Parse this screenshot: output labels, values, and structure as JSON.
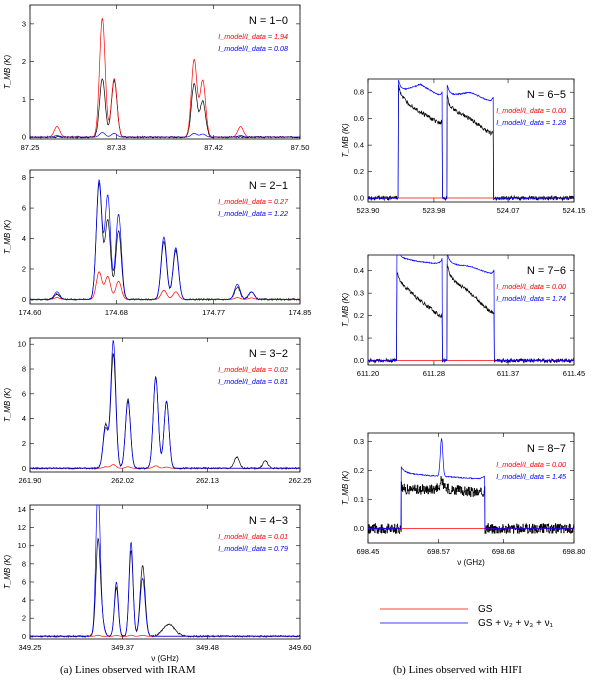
{
  "colors": {
    "data": "#000000",
    "gs": "#ff0000",
    "full": "#0000ff"
  },
  "captions": {
    "a": "(a) Lines observed with IRAM",
    "b": "(b) Lines observed with HIFI"
  },
  "legend": {
    "gs_label": "GS",
    "full_label": "GS + ν₂ + ν₃ + ν₁"
  },
  "chart_data": [
    {
      "type": "line",
      "title": "N = 1−0",
      "ylabel": "T_MB (K)",
      "xlabel": "",
      "xlim": [
        87.25,
        87.5
      ],
      "ylim": [
        -0.05,
        3.5
      ],
      "xticks": [
        "87.25",
        "87.33",
        "87.42",
        "87.50"
      ],
      "yticks": [
        0,
        1,
        2,
        3
      ],
      "ratio_gs": "I_model/I_data = 1.94",
      "ratio_full": "I_model/I_data = 0.08",
      "peaks": [
        {
          "x": 87.275,
          "w": 0.004,
          "data": 0.0,
          "gs": 0.28,
          "full": 0.04
        },
        {
          "x": 87.317,
          "w": 0.004,
          "data": 1.55,
          "gs": 3.15,
          "full": 0.12
        },
        {
          "x": 87.328,
          "w": 0.004,
          "data": 1.5,
          "gs": 1.55,
          "full": 0.1
        },
        {
          "x": 87.402,
          "w": 0.004,
          "data": 1.4,
          "gs": 2.05,
          "full": 0.1
        },
        {
          "x": 87.41,
          "w": 0.004,
          "data": 0.95,
          "gs": 1.5,
          "full": 0.08
        },
        {
          "x": 87.445,
          "w": 0.004,
          "data": 0.0,
          "gs": 0.28,
          "full": 0.04
        }
      ]
    },
    {
      "type": "line",
      "title": "N = 2−1",
      "ylabel": "T_MB (K)",
      "xlabel": "",
      "xlim": [
        174.6,
        174.85
      ],
      "ylim": [
        -0.3,
        8.5
      ],
      "xticks": [
        "174.60",
        "174.68",
        "174.77",
        "174.85"
      ],
      "yticks": [
        0,
        2,
        4,
        6,
        8
      ],
      "ratio_gs": "I_model/I_data = 0.27",
      "ratio_full": "I_model/I_data = 1.22",
      "peaks": [
        {
          "x": 174.625,
          "w": 0.004,
          "data": 0.35,
          "gs": 0.12,
          "full": 0.5
        },
        {
          "x": 174.664,
          "w": 0.004,
          "data": 7.6,
          "gs": 1.8,
          "full": 7.8
        },
        {
          "x": 174.672,
          "w": 0.004,
          "data": 5.2,
          "gs": 1.5,
          "full": 6.8
        },
        {
          "x": 174.682,
          "w": 0.004,
          "data": 4.5,
          "gs": 1.2,
          "full": 5.6
        },
        {
          "x": 174.724,
          "w": 0.004,
          "data": 3.8,
          "gs": 0.6,
          "full": 4.1
        },
        {
          "x": 174.735,
          "w": 0.004,
          "data": 3.2,
          "gs": 0.5,
          "full": 3.4
        },
        {
          "x": 174.792,
          "w": 0.004,
          "data": 0.8,
          "gs": 0.12,
          "full": 1.0
        },
        {
          "x": 174.805,
          "w": 0.004,
          "data": 0.5,
          "gs": 0.1,
          "full": 0.5
        }
      ]
    },
    {
      "type": "line",
      "title": "N = 3−2",
      "ylabel": "T_MB (K)",
      "xlabel": "",
      "xlim": [
        261.9,
        262.25
      ],
      "ylim": [
        -0.3,
        10.5
      ],
      "xticks": [
        "261.90",
        "262.02",
        "262.13",
        "262.25"
      ],
      "yticks": [
        0,
        2,
        4,
        6,
        8,
        10
      ],
      "ratio_gs": "I_model/I_data = 0.02",
      "ratio_full": "I_model/I_data = 0.81",
      "peaks": [
        {
          "x": 261.998,
          "w": 0.005,
          "data": 3.5,
          "gs": 0.12,
          "full": 3.2
        },
        {
          "x": 262.008,
          "w": 0.005,
          "data": 9.2,
          "gs": 0.3,
          "full": 10.3
        },
        {
          "x": 262.027,
          "w": 0.005,
          "data": 5.6,
          "gs": 0.12,
          "full": 5.4
        },
        {
          "x": 262.063,
          "w": 0.005,
          "data": 7.4,
          "gs": 0.2,
          "full": 7.3
        },
        {
          "x": 262.077,
          "w": 0.005,
          "data": 5.4,
          "gs": 0.1,
          "full": 5.4
        },
        {
          "x": 262.168,
          "w": 0.005,
          "data": 0.9,
          "gs": 0.0,
          "full": 0.0
        },
        {
          "x": 262.205,
          "w": 0.005,
          "data": 0.6,
          "gs": 0.0,
          "full": 0.0
        }
      ]
    },
    {
      "type": "line",
      "title": "N = 4−3",
      "ylabel": "T_MB (K)",
      "xlabel": "ν (GHz)",
      "xlim": [
        349.25,
        349.6
      ],
      "ylim": [
        -0.3,
        14.5
      ],
      "xticks": [
        "349.25",
        "349.37",
        "349.48",
        "349.60"
      ],
      "yticks": [
        0,
        2,
        4,
        6,
        8,
        10,
        12,
        14
      ],
      "ratio_gs": "I_model/I_data = 0.01",
      "ratio_full": "I_model/I_data = 0.79",
      "peaks": [
        {
          "x": 349.338,
          "w": 0.004,
          "data": 7.2,
          "gs": 0.12,
          "full": 13.8
        },
        {
          "x": 349.34,
          "w": 0.006,
          "data": 4.0,
          "gs": 0.0,
          "full": 3.5
        },
        {
          "x": 349.362,
          "w": 0.004,
          "data": 5.4,
          "gs": 0.1,
          "full": 6.0
        },
        {
          "x": 349.381,
          "w": 0.004,
          "data": 9.5,
          "gs": 0.12,
          "full": 10.4
        },
        {
          "x": 349.396,
          "w": 0.005,
          "data": 7.8,
          "gs": 0.1,
          "full": 6.4
        },
        {
          "x": 349.43,
          "w": 0.012,
          "data": 1.3,
          "gs": 0.0,
          "full": 0.0
        }
      ]
    },
    {
      "type": "line",
      "title": "N = 6−5",
      "ylabel": "T_MB (K)",
      "xlabel": "",
      "xlim": [
        523.9,
        524.15
      ],
      "ylim": [
        -0.03,
        0.9
      ],
      "xticks": [
        "523.90",
        "523.98",
        "524.07",
        "524.15"
      ],
      "yticks": [
        0.0,
        0.2,
        0.4,
        0.6,
        0.8
      ],
      "ratio_gs": "I_model/I_data = 0.00",
      "ratio_full": "I_model/I_data = 1.28",
      "plateaus": [
        {
          "x0": 523.937,
          "x1": 523.99,
          "data": [
            0.77,
            0.65,
            0.55
          ],
          "full": [
            0.8,
            0.86,
            0.76
          ]
        },
        {
          "x0": 523.996,
          "x1": 524.052,
          "data": [
            0.69,
            0.6,
            0.47
          ],
          "full": [
            0.77,
            0.8,
            0.72
          ]
        }
      ]
    },
    {
      "type": "line",
      "title": "N = 7−6",
      "ylabel": "T_MB (K)",
      "xlabel": "",
      "xlim": [
        611.2,
        611.45
      ],
      "ylim": [
        -0.02,
        0.47
      ],
      "xticks": [
        "611.20",
        "611.28",
        "611.37",
        "611.45"
      ],
      "yticks": [
        0.0,
        0.1,
        0.2,
        0.3,
        0.4
      ],
      "ratio_gs": "I_model/I_data = 0.00",
      "ratio_full": "I_model/I_data = 1.74",
      "plateaus": [
        {
          "x0": 611.235,
          "x1": 611.29,
          "data": [
            0.36,
            0.27,
            0.19
          ],
          "full": [
            0.46,
            0.44,
            0.43
          ]
        },
        {
          "x0": 611.296,
          "x1": 611.353,
          "data": [
            0.38,
            0.3,
            0.2
          ],
          "full": [
            0.43,
            0.42,
            0.38
          ]
        }
      ]
    },
    {
      "type": "line",
      "title": "N = 8−7",
      "ylabel": "T_MB (K)",
      "xlabel": "ν (GHz)",
      "xlim": [
        698.45,
        698.8
      ],
      "ylim": [
        -0.05,
        0.33
      ],
      "xticks": [
        "698.45",
        "698.57",
        "698.68",
        "698.80"
      ],
      "yticks": [
        0.0,
        0.1,
        0.2,
        0.3
      ],
      "ratio_gs": "I_model/I_data = 0.00",
      "ratio_full": "I_model/I_data = 1.45",
      "plateaus": [
        {
          "x0": 698.506,
          "x1": 698.648,
          "data": [
            0.13,
            0.14,
            0.12
          ],
          "full": [
            0.19,
            0.18,
            0.17
          ]
        }
      ],
      "central_spike": {
        "x": 698.575,
        "data": 0.21,
        "full": 0.31
      },
      "noisy": true
    }
  ]
}
